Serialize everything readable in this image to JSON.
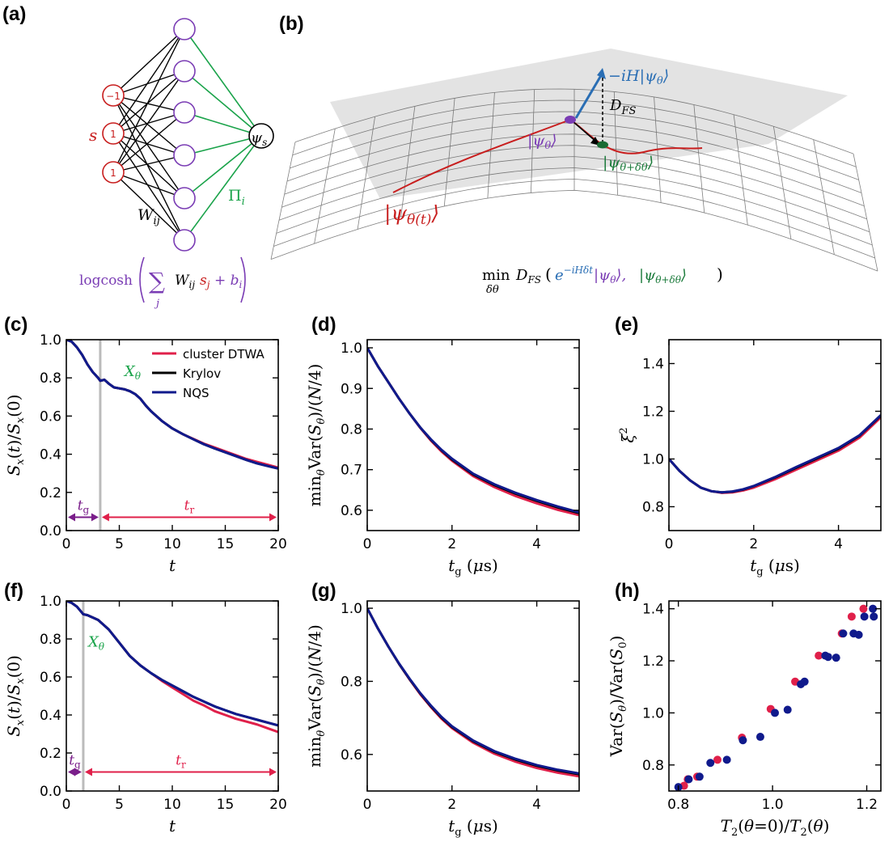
{
  "panel_labels": [
    "(a)",
    "(b)",
    "(c)",
    "(d)",
    "(e)",
    "(f)",
    "(g)",
    "(h)"
  ],
  "colors": {
    "red": "#e0204a",
    "black": "#000000",
    "navy": "#101a8c",
    "green": "#1aa34a",
    "purple": "#7a3cb4",
    "blue": "#2a6eb4",
    "darkred": "#c81e1e",
    "grey": "#bbbbbb"
  },
  "schematic_a": {
    "input_values": [
      "−1",
      "1",
      "1"
    ],
    "s_label": "s",
    "psi_label": "ψ",
    "psi_sub": "s",
    "w_label": "W",
    "w_sub": "ij",
    "pi_label": "Π",
    "pi_sub": "i",
    "formula": {
      "prefix": "logcosh",
      "sum": "∑",
      "sum_index": "j",
      "w": "W",
      "w_sub": "ij",
      "s": "s",
      "s_sub": "j",
      "plus_b": "+ b",
      "b_sub": "i"
    }
  },
  "schematic_b": {
    "psi_theta_t": "|ψθ(t)⟩",
    "psi_theta": "|ψθ⟩",
    "psi_theta_dtheta": "|ψθ+δθ⟩",
    "minus_ih": "−iH|ψθ⟩",
    "dfs": "DFS",
    "formula": "minδθ DFS (e−iHδt|ψθ⟩, |ψθ+δθ⟩)"
  },
  "legend": [
    "cluster DTWA",
    "Krylov",
    "NQS"
  ],
  "chart_data": [
    {
      "id": "c",
      "type": "line",
      "xlabel": "t",
      "ylabel": "Sx(t)/Sx(0)",
      "xlim": [
        0,
        20
      ],
      "ylim": [
        0.0,
        1.0
      ],
      "xticks": [
        0,
        5,
        10,
        15,
        20
      ],
      "yticks": [
        0.0,
        0.2,
        0.4,
        0.6,
        0.8,
        1.0
      ],
      "vline": 3.2,
      "annotation": "Xθ",
      "arrows": [
        {
          "label": "tg",
          "from": 0,
          "to": 3.2,
          "y": 0.07
        },
        {
          "label": "tr",
          "from": 3.2,
          "to": 20,
          "y": 0.07
        }
      ],
      "series": [
        {
          "name": "cluster DTWA",
          "color": "#e0204a",
          "x": [
            0,
            0.5,
            1,
            1.5,
            2,
            2.5,
            3,
            3.2,
            3.6,
            4,
            4.5,
            5,
            5.5,
            6,
            6.5,
            7,
            7.5,
            8,
            9,
            10,
            11,
            12,
            13,
            14,
            15,
            16,
            17,
            18,
            19,
            20
          ],
          "y": [
            1.0,
            0.99,
            0.96,
            0.92,
            0.87,
            0.83,
            0.8,
            0.785,
            0.79,
            0.77,
            0.75,
            0.745,
            0.74,
            0.73,
            0.715,
            0.69,
            0.655,
            0.625,
            0.575,
            0.535,
            0.505,
            0.48,
            0.455,
            0.435,
            0.415,
            0.395,
            0.375,
            0.36,
            0.345,
            0.33
          ]
        },
        {
          "name": "Krylov",
          "color": "#000000",
          "x": [
            0,
            0.5,
            1,
            1.5,
            2,
            2.5,
            3,
            3.2,
            3.6,
            4,
            4.5,
            5,
            5.5,
            6,
            6.5,
            7,
            7.5,
            8,
            9,
            10,
            11,
            12,
            13,
            14,
            15,
            16,
            17,
            18,
            19,
            20
          ],
          "y": [
            1.0,
            0.99,
            0.96,
            0.92,
            0.87,
            0.83,
            0.8,
            0.785,
            0.79,
            0.77,
            0.75,
            0.745,
            0.74,
            0.73,
            0.715,
            0.69,
            0.655,
            0.625,
            0.575,
            0.535,
            0.505,
            0.478,
            0.452,
            0.43,
            0.41,
            0.39,
            0.37,
            0.352,
            0.338,
            0.325
          ]
        },
        {
          "name": "NQS",
          "color": "#101a8c",
          "x": [
            0,
            0.5,
            1,
            1.5,
            2,
            2.5,
            3,
            3.2,
            3.6,
            4,
            4.5,
            5,
            5.5,
            6,
            6.5,
            7,
            7.5,
            8,
            9,
            10,
            11,
            12,
            13,
            14,
            15,
            16,
            17,
            18,
            19,
            20
          ],
          "y": [
            1.0,
            0.99,
            0.96,
            0.92,
            0.87,
            0.83,
            0.8,
            0.785,
            0.79,
            0.77,
            0.75,
            0.745,
            0.74,
            0.73,
            0.715,
            0.69,
            0.655,
            0.625,
            0.575,
            0.535,
            0.505,
            0.478,
            0.452,
            0.43,
            0.41,
            0.39,
            0.37,
            0.352,
            0.338,
            0.325
          ]
        }
      ]
    },
    {
      "id": "d",
      "type": "line",
      "xlabel": "tg (μs)",
      "ylabel": "minθ Var(Sθ)/(N/4)",
      "xlim": [
        0,
        5
      ],
      "ylim": [
        0.55,
        1.02
      ],
      "xticks": [
        0,
        2,
        4
      ],
      "yticks": [
        0.6,
        0.7,
        0.8,
        0.9,
        1.0
      ],
      "series": [
        {
          "name": "cluster DTWA",
          "color": "#e0204a",
          "x": [
            0,
            0.25,
            0.5,
            0.75,
            1,
            1.25,
            1.5,
            1.75,
            2,
            2.5,
            3,
            3.5,
            4,
            4.5,
            5
          ],
          "y": [
            1.0,
            0.955,
            0.915,
            0.875,
            0.838,
            0.803,
            0.772,
            0.745,
            0.722,
            0.684,
            0.657,
            0.635,
            0.617,
            0.601,
            0.588
          ]
        },
        {
          "name": "Krylov",
          "color": "#000000",
          "x": [
            0,
            0.25,
            0.5,
            0.75,
            1,
            1.25,
            1.5,
            1.75,
            2,
            2.5,
            3,
            3.5,
            4,
            4.5,
            5
          ],
          "y": [
            1.0,
            0.955,
            0.915,
            0.875,
            0.838,
            0.804,
            0.774,
            0.748,
            0.725,
            0.688,
            0.662,
            0.641,
            0.623,
            0.607,
            0.593
          ]
        },
        {
          "name": "NQS",
          "color": "#101a8c",
          "x": [
            0,
            0.25,
            0.5,
            0.75,
            1,
            1.25,
            1.5,
            1.75,
            2,
            2.5,
            3,
            3.5,
            4,
            4.5,
            5
          ],
          "y": [
            1.0,
            0.955,
            0.915,
            0.875,
            0.838,
            0.804,
            0.775,
            0.749,
            0.727,
            0.69,
            0.664,
            0.643,
            0.625,
            0.609,
            0.595
          ]
        }
      ]
    },
    {
      "id": "e",
      "type": "line",
      "xlabel": "tg (μs)",
      "ylabel": "ξ2",
      "xlim": [
        0,
        5
      ],
      "ylim": [
        0.7,
        1.5
      ],
      "xticks": [
        0,
        2,
        4
      ],
      "yticks": [
        0.8,
        1.0,
        1.2,
        1.4
      ],
      "series": [
        {
          "name": "cluster DTWA",
          "color": "#e0204a",
          "x": [
            0,
            0.25,
            0.5,
            0.75,
            1,
            1.25,
            1.5,
            1.75,
            2,
            2.5,
            3,
            3.5,
            4,
            4.5,
            5
          ],
          "y": [
            1.0,
            0.95,
            0.91,
            0.88,
            0.865,
            0.858,
            0.86,
            0.868,
            0.88,
            0.915,
            0.955,
            0.995,
            1.035,
            1.09,
            1.175
          ]
        },
        {
          "name": "Krylov",
          "color": "#000000",
          "x": [
            0,
            0.25,
            0.5,
            0.75,
            1,
            1.25,
            1.5,
            1.75,
            2,
            2.5,
            3,
            3.5,
            4,
            4.5,
            5
          ],
          "y": [
            1.0,
            0.95,
            0.91,
            0.88,
            0.865,
            0.86,
            0.863,
            0.872,
            0.886,
            0.922,
            0.963,
            1.003,
            1.043,
            1.098,
            1.182
          ]
        },
        {
          "name": "NQS",
          "color": "#101a8c",
          "x": [
            0,
            0.25,
            0.5,
            0.75,
            1,
            1.25,
            1.5,
            1.75,
            2,
            2.5,
            3,
            3.5,
            4,
            4.5,
            5
          ],
          "y": [
            1.0,
            0.95,
            0.91,
            0.88,
            0.865,
            0.86,
            0.864,
            0.873,
            0.887,
            0.924,
            0.966,
            1.006,
            1.046,
            1.1,
            1.184
          ]
        }
      ]
    },
    {
      "id": "f",
      "type": "line",
      "xlabel": "t",
      "ylabel": "Sx(t)/Sx(0)",
      "xlim": [
        0,
        20
      ],
      "ylim": [
        0.0,
        1.0
      ],
      "xticks": [
        0,
        5,
        10,
        15,
        20
      ],
      "yticks": [
        0.0,
        0.2,
        0.4,
        0.6,
        0.8,
        1.0
      ],
      "vline": 1.6,
      "annotation": "Xθ",
      "arrows": [
        {
          "label": "tg",
          "from": 0,
          "to": 1.6,
          "y": 0.1
        },
        {
          "label": "tr",
          "from": 1.6,
          "to": 20,
          "y": 0.1
        }
      ],
      "series": [
        {
          "name": "cluster DTWA",
          "color": "#e0204a",
          "x": [
            0,
            0.5,
            1,
            1.6,
            2,
            3,
            4,
            5,
            6,
            7,
            8,
            9,
            10,
            11,
            12,
            13,
            14,
            15,
            16,
            17,
            18,
            19,
            20
          ],
          "y": [
            1.0,
            0.99,
            0.97,
            0.93,
            0.925,
            0.9,
            0.85,
            0.78,
            0.71,
            0.66,
            0.62,
            0.58,
            0.545,
            0.51,
            0.475,
            0.45,
            0.42,
            0.4,
            0.38,
            0.365,
            0.35,
            0.33,
            0.31
          ]
        },
        {
          "name": "Krylov",
          "color": "#000000",
          "x": [
            0,
            0.5,
            1,
            1.6,
            2,
            3,
            4,
            5,
            6,
            7,
            8,
            9,
            10,
            11,
            12,
            13,
            14,
            15,
            16,
            17,
            18,
            19,
            20
          ],
          "y": [
            1.0,
            0.99,
            0.97,
            0.93,
            0.925,
            0.9,
            0.85,
            0.78,
            0.71,
            0.66,
            0.62,
            0.585,
            0.555,
            0.525,
            0.495,
            0.47,
            0.445,
            0.425,
            0.405,
            0.39,
            0.375,
            0.36,
            0.345
          ]
        },
        {
          "name": "NQS",
          "color": "#101a8c",
          "x": [
            0,
            0.5,
            1,
            1.6,
            2,
            3,
            4,
            5,
            6,
            7,
            8,
            9,
            10,
            11,
            12,
            13,
            14,
            15,
            16,
            17,
            18,
            19,
            20
          ],
          "y": [
            1.0,
            0.99,
            0.97,
            0.93,
            0.925,
            0.9,
            0.85,
            0.78,
            0.71,
            0.66,
            0.62,
            0.585,
            0.555,
            0.525,
            0.495,
            0.47,
            0.445,
            0.425,
            0.405,
            0.39,
            0.375,
            0.36,
            0.345
          ]
        }
      ]
    },
    {
      "id": "g",
      "type": "line",
      "xlabel": "tg (μs)",
      "ylabel": "minθ Var(Sθ)/(N/4)",
      "xlim": [
        0,
        5
      ],
      "ylim": [
        0.5,
        1.02
      ],
      "xticks": [
        0,
        2,
        4
      ],
      "yticks": [
        0.6,
        0.8,
        1.0
      ],
      "series": [
        {
          "name": "cluster DTWA",
          "color": "#e0204a",
          "x": [
            0,
            0.25,
            0.5,
            0.75,
            1,
            1.25,
            1.5,
            1.75,
            2,
            2.5,
            3,
            3.5,
            4,
            4.5,
            5
          ],
          "y": [
            1.0,
            0.945,
            0.895,
            0.848,
            0.805,
            0.765,
            0.73,
            0.698,
            0.672,
            0.632,
            0.602,
            0.58,
            0.563,
            0.55,
            0.54
          ]
        },
        {
          "name": "Krylov",
          "color": "#000000",
          "x": [
            0,
            0.25,
            0.5,
            0.75,
            1,
            1.25,
            1.5,
            1.75,
            2,
            2.5,
            3,
            3.5,
            4,
            4.5,
            5
          ],
          "y": [
            1.0,
            0.945,
            0.895,
            0.848,
            0.806,
            0.767,
            0.732,
            0.701,
            0.675,
            0.636,
            0.607,
            0.586,
            0.569,
            0.556,
            0.546
          ]
        },
        {
          "name": "NQS",
          "color": "#101a8c",
          "x": [
            0,
            0.25,
            0.5,
            0.75,
            1,
            1.25,
            1.5,
            1.75,
            2,
            2.5,
            3,
            3.5,
            4,
            4.5,
            5
          ],
          "y": [
            1.0,
            0.945,
            0.895,
            0.849,
            0.807,
            0.768,
            0.734,
            0.703,
            0.677,
            0.638,
            0.609,
            0.588,
            0.571,
            0.558,
            0.548
          ]
        }
      ]
    },
    {
      "id": "h",
      "type": "scatter",
      "xlabel": "T2(θ=0)/T2(θ)",
      "ylabel": "Var(Sθ)/Var(S0)",
      "xlim": [
        0.78,
        1.23
      ],
      "ylim": [
        0.7,
        1.43
      ],
      "xticks": [
        0.8,
        1.0,
        1.2
      ],
      "yticks": [
        0.8,
        1.0,
        1.2,
        1.4
      ],
      "series": [
        {
          "name": "cluster DTWA",
          "color": "#e0204a",
          "x": [
            0.812,
            0.82,
            0.84,
            0.883,
            0.935,
            0.996,
            1.048,
            1.098,
            1.147,
            1.168,
            1.193
          ],
          "y": [
            0.72,
            0.745,
            0.755,
            0.82,
            0.905,
            1.015,
            1.12,
            1.22,
            1.305,
            1.37,
            1.4
          ]
        },
        {
          "name": "NQS",
          "color": "#101a8c",
          "x": [
            0.8,
            0.822,
            0.845,
            0.868,
            0.903,
            0.937,
            0.974,
            1.005,
            1.032,
            1.06,
            1.068,
            1.112,
            1.118,
            1.135,
            1.15,
            1.172,
            1.183,
            1.195,
            1.215,
            1.213
          ],
          "y": [
            0.715,
            0.745,
            0.755,
            0.808,
            0.82,
            0.895,
            0.908,
            1.0,
            1.012,
            1.11,
            1.12,
            1.22,
            1.215,
            1.212,
            1.305,
            1.305,
            1.3,
            1.37,
            1.37,
            1.4
          ]
        }
      ]
    }
  ]
}
